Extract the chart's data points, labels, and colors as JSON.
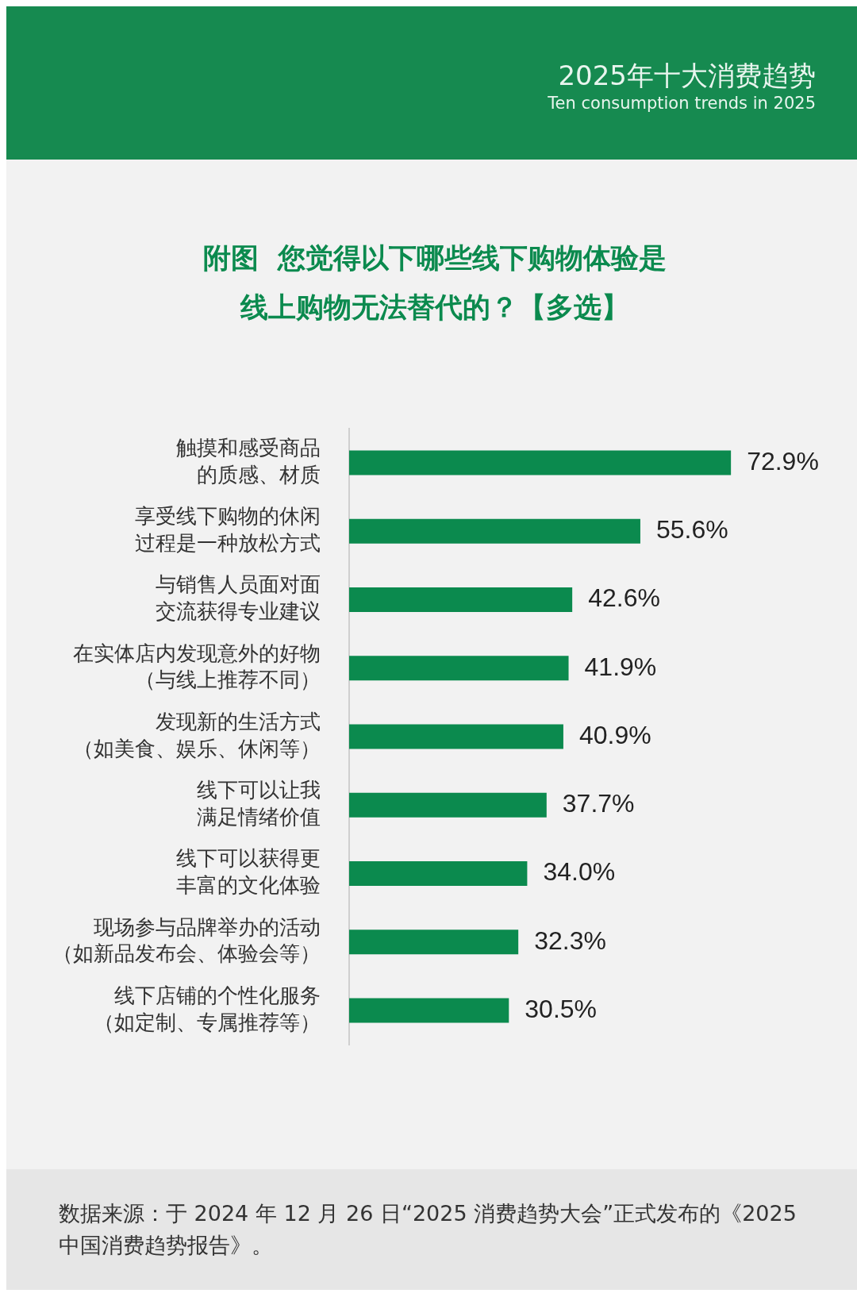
{
  "chart_data": {
    "type": "bar",
    "orientation": "horizontal",
    "subtitle": "2025年十大消费趋势",
    "title": "附图  您觉得以下哪些线下购物体验是线上购物无法替代的？【多选】",
    "categories": [
      "触摸和感受商品的质感、材质",
      "享受线下购物的休闲过程是一种放松方式",
      "与销售人员面对面交流获得专业建议",
      "在实体店内发现意外的好物（与线上推荐不同）",
      "发现新的生活方式（如美食、娱乐、休闲等）",
      "线下可以让我满足情绪价值",
      "线下可以获得更丰富的文化体验",
      "现场参与品牌举办的活动（如新品发布会、体验会等）",
      "线下店铺的个性化服务（如定制、专属推荐等）"
    ],
    "values": [
      72.9,
      55.6,
      42.6,
      41.9,
      40.9,
      37.7,
      34.0,
      32.3,
      30.5
    ],
    "value_labels": [
      "72.9%",
      "55.6%",
      "42.6%",
      "41.9%",
      "40.9%",
      "37.7%",
      "34.0%",
      "32.3%",
      "30.5%"
    ],
    "color": "#0b8a4e",
    "legend": false,
    "annotations": [
      "Ten consumption trends in 2025",
      "数据来源：于 2024 年 12 月 26 日“2025 消费趋势大会”正式发布的《2025 中国消费趋势报告》。"
    ]
  }
}
